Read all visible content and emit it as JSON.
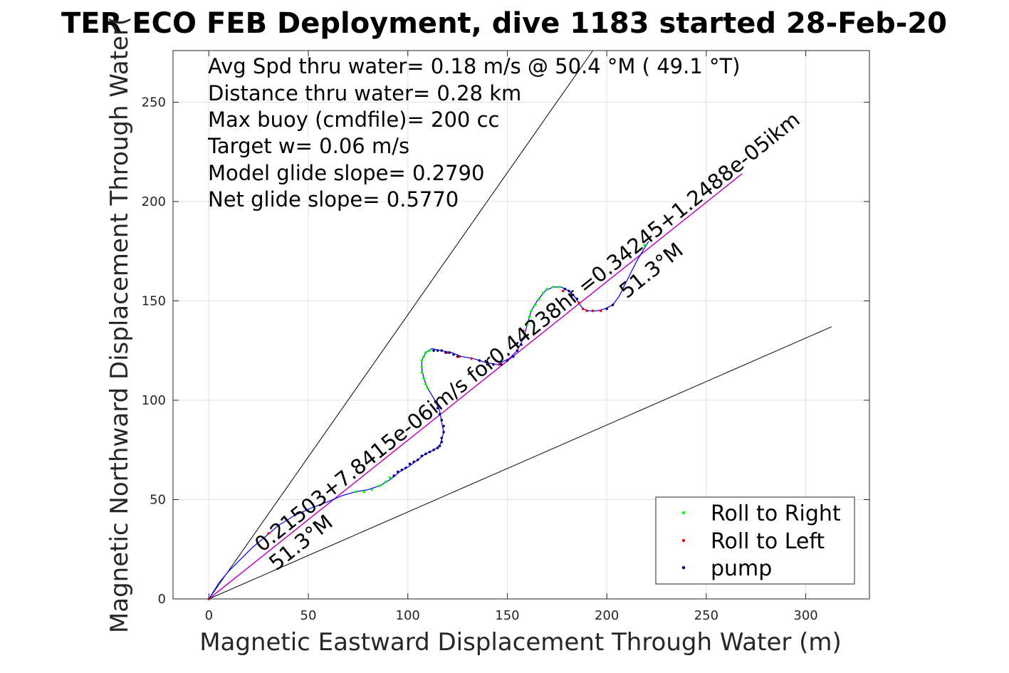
{
  "chart_data": {
    "type": "scatter",
    "title": "TER ECO FEB Deployment, dive 1183 started 28-Feb-20",
    "xlabel": "Magnetic Eastward Displacement Through Water (m)",
    "ylabel": "Magnetic Northward Displacement Through Water(",
    "xlim": [
      -18,
      332
    ],
    "ylim": [
      0,
      276
    ],
    "xticks": [
      0,
      50,
      100,
      150,
      200,
      250,
      300
    ],
    "yticks": [
      0,
      50,
      100,
      150,
      200,
      250
    ],
    "grid": true,
    "legend_position": "bottom-right",
    "stats": [
      "Avg Spd thru water=  0.18 m/s @  50.4 °M ( 49.1 °T)",
      "Distance thru water=  0.28 km",
      "Max buoy (cmdfile)= 200 cc",
      "Target w= 0.06 m/s",
      "Model glide slope= 0.2790",
      "Net glide slope= 0.5770"
    ],
    "annotations": {
      "velocity_text": "0.21503+7.8415e-06im/s for0.44238hr =0.34245+1.2488e-05ikm",
      "heading_lower": "51.3°M",
      "heading_upper": "51.3°M"
    },
    "legend": {
      "roll_right": "Roll to Right",
      "roll_left": "Roll to Left",
      "pump": "pump"
    },
    "colors": {
      "track": "#0000ff",
      "roll_right": "#00ff00",
      "roll_left": "#ff0000",
      "pump": "#000080",
      "net_line": "#c000c0",
      "cone": "#000000",
      "grid": "#e0e0e0"
    },
    "cone_lines": [
      {
        "x": [
          0,
          193
        ],
        "y": [
          0,
          276
        ]
      },
      {
        "x": [
          0,
          313
        ],
        "y": [
          0,
          137
        ]
      }
    ],
    "net_line": {
      "x": [
        0,
        268
      ],
      "y": [
        0,
        214
      ]
    },
    "track": [
      [
        0,
        0
      ],
      [
        5,
        8
      ],
      [
        10,
        14
      ],
      [
        16,
        20
      ],
      [
        22,
        26
      ],
      [
        28,
        31
      ],
      [
        35,
        37
      ],
      [
        43,
        42
      ],
      [
        52,
        46
      ],
      [
        60,
        49
      ],
      [
        67,
        52
      ],
      [
        74,
        54
      ],
      [
        80,
        55
      ],
      [
        86,
        57
      ],
      [
        91,
        60
      ],
      [
        96,
        64
      ],
      [
        101,
        67
      ],
      [
        105,
        70
      ],
      [
        109,
        73
      ],
      [
        113,
        75
      ],
      [
        116,
        77
      ],
      [
        117,
        80
      ],
      [
        118,
        84
      ],
      [
        117,
        89
      ],
      [
        116,
        95
      ],
      [
        113,
        101
      ],
      [
        110,
        106
      ],
      [
        108,
        111
      ],
      [
        107,
        116
      ],
      [
        107,
        120
      ],
      [
        109,
        124
      ],
      [
        112,
        126
      ],
      [
        117,
        125
      ],
      [
        122,
        124
      ],
      [
        127,
        122
      ],
      [
        133,
        121
      ],
      [
        139,
        119
      ],
      [
        145,
        118
      ],
      [
        151,
        121
      ],
      [
        155,
        125
      ],
      [
        158,
        131
      ],
      [
        160,
        138
      ],
      [
        162,
        145
      ],
      [
        165,
        150
      ],
      [
        169,
        155
      ],
      [
        173,
        157
      ],
      [
        177,
        157
      ],
      [
        181,
        155
      ],
      [
        184,
        152
      ],
      [
        186,
        149
      ],
      [
        188,
        146
      ],
      [
        191,
        145
      ],
      [
        195,
        145
      ],
      [
        199,
        146
      ],
      [
        203,
        148
      ],
      [
        206,
        152
      ],
      [
        209,
        158
      ],
      [
        212,
        164
      ],
      [
        215,
        170
      ],
      [
        218,
        175
      ],
      [
        221,
        180
      ]
    ],
    "roll_right_points": [
      [
        74,
        54
      ],
      [
        78,
        54
      ],
      [
        82,
        55
      ],
      [
        86,
        57
      ],
      [
        89,
        59
      ],
      [
        91,
        61
      ],
      [
        110,
        106
      ],
      [
        109,
        108
      ],
      [
        108,
        111
      ],
      [
        107,
        114
      ],
      [
        107,
        117
      ],
      [
        107,
        120
      ],
      [
        108,
        122
      ],
      [
        109,
        124
      ],
      [
        111,
        125
      ],
      [
        159,
        133
      ],
      [
        160,
        138
      ],
      [
        161,
        142
      ],
      [
        162,
        145
      ],
      [
        164,
        148
      ],
      [
        166,
        151
      ],
      [
        168,
        154
      ],
      [
        170,
        156
      ],
      [
        173,
        157
      ],
      [
        176,
        157
      ],
      [
        217,
        176
      ],
      [
        219,
        178
      ]
    ],
    "roll_left_points": [
      [
        0,
        0
      ],
      [
        30,
        33
      ],
      [
        120,
        124
      ],
      [
        126,
        122
      ],
      [
        132,
        121
      ],
      [
        140,
        119
      ],
      [
        146,
        118
      ],
      [
        158,
        135
      ],
      [
        178,
        155
      ],
      [
        186,
        149
      ],
      [
        188,
        146
      ],
      [
        190,
        145
      ],
      [
        193,
        145
      ],
      [
        197,
        145
      ]
    ],
    "pump_points": [
      [
        93,
        62
      ],
      [
        95,
        64
      ],
      [
        97,
        65
      ],
      [
        99,
        66
      ],
      [
        101,
        68
      ],
      [
        103,
        69
      ],
      [
        105,
        70
      ],
      [
        107,
        72
      ],
      [
        109,
        73
      ],
      [
        111,
        74
      ],
      [
        113,
        75
      ],
      [
        115,
        76
      ],
      [
        116,
        77
      ],
      [
        117,
        79
      ],
      [
        117,
        81
      ],
      [
        118,
        84
      ],
      [
        118,
        87
      ],
      [
        117,
        90
      ],
      [
        116,
        93
      ],
      [
        115,
        96
      ],
      [
        114,
        99
      ],
      [
        113,
        125
      ],
      [
        115,
        125
      ],
      [
        117,
        125
      ],
      [
        119,
        124
      ],
      [
        121,
        124
      ],
      [
        123,
        123
      ],
      [
        125,
        122
      ],
      [
        136,
        120
      ],
      [
        140,
        118
      ],
      [
        143,
        118
      ],
      [
        147,
        118
      ],
      [
        150,
        120
      ],
      [
        153,
        122
      ],
      [
        155,
        125
      ],
      [
        157,
        128
      ],
      [
        158,
        131
      ],
      [
        179,
        156
      ],
      [
        181,
        155
      ],
      [
        183,
        153
      ],
      [
        185,
        151
      ],
      [
        200,
        146
      ],
      [
        203,
        148
      ]
    ]
  }
}
